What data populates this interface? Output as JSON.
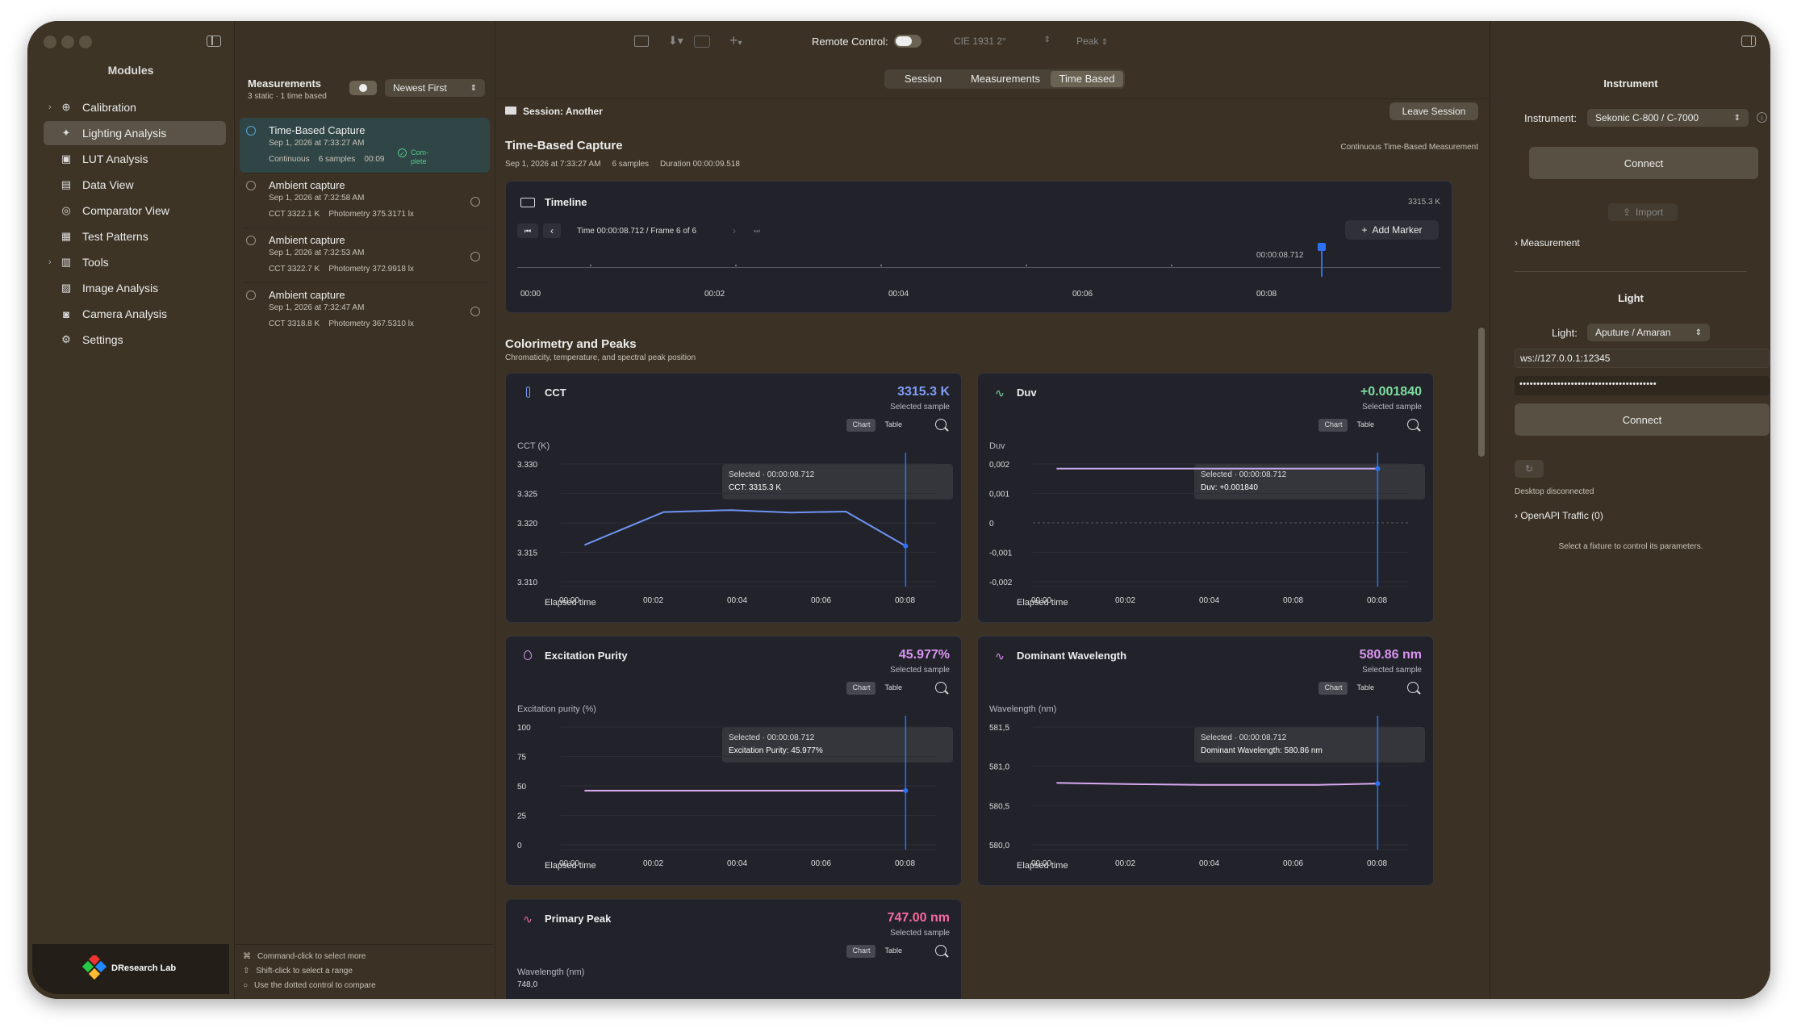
{
  "sidebar": {
    "title": "Modules",
    "items": [
      {
        "label": "Calibration",
        "icon": "crosshair-icon",
        "chevron": true
      },
      {
        "label": "Lighting Analysis",
        "icon": "sparkle-icon",
        "selected": true
      },
      {
        "label": "LUT Analysis",
        "icon": "cube-icon"
      },
      {
        "label": "Data View",
        "icon": "table-icon"
      },
      {
        "label": "Comparator View",
        "icon": "target-icon"
      },
      {
        "label": "Test Patterns",
        "icon": "grid-icon"
      },
      {
        "label": "Tools",
        "icon": "ruler-icon",
        "chevron": true
      },
      {
        "label": "Image Analysis",
        "icon": "photo-icon"
      },
      {
        "label": "Camera Analysis",
        "icon": "camera-icon"
      },
      {
        "label": "Settings",
        "icon": "gear-icon"
      }
    ],
    "brand": "DResearch Lab"
  },
  "toolbar": {
    "remote_label": "Remote Control:",
    "cie": "CIE 1931 2°",
    "peak": "Peak"
  },
  "measurements": {
    "title": "Measurements",
    "subtitle": "3 static · 1 time based",
    "sort": "Newest First",
    "items": [
      {
        "title": "Time-Based Capture",
        "date": "Sep 1, 2026 at 7:33:27 AM",
        "meta1": "Continuous",
        "meta2": "6 samples",
        "meta3": "00:09",
        "status": "Com-\nplete",
        "selected": true
      },
      {
        "title": "Ambient capture",
        "date": "Sep 1, 2026 at 7:32:58 AM",
        "meta1": "CCT 3322.1 K",
        "meta2": "Photometry 375.3171 lx"
      },
      {
        "title": "Ambient capture",
        "date": "Sep 1, 2026 at 7:32:53 AM",
        "meta1": "CCT 3322.7 K",
        "meta2": "Photometry 372.9918 lx"
      },
      {
        "title": "Ambient capture",
        "date": "Sep 1, 2026 at 7:32:47 AM",
        "meta1": "CCT 3318.8 K",
        "meta2": "Photometry 367.5310 lx"
      }
    ],
    "hints": [
      "Command-click to select more",
      "Shift-click to select a range",
      "Use the dotted control to compare"
    ]
  },
  "tabs": [
    "Session",
    "Measurements",
    "Time Based"
  ],
  "session": {
    "label": "Session: Another",
    "leave": "Leave Session"
  },
  "capture": {
    "title": "Time-Based Capture",
    "date": "Sep 1, 2026 at 7:33:27 AM",
    "samples": "6 samples",
    "duration": "Duration 00:00:09.518",
    "mode": "Continuous Time-Based Measurement"
  },
  "timeline": {
    "title": "Timeline",
    "value": "3315.3 K",
    "frame": "Time 00:00:08.712 / Frame 6 of 6",
    "add_marker": "Add Marker",
    "marker_time": "00:00:08.712",
    "ticks": [
      "00:00",
      "00:02",
      "00:04",
      "00:06",
      "00:08"
    ]
  },
  "colorimetry": {
    "title": "Colorimetry and Peaks",
    "subtitle": "Chromaticity, temperature, and spectral peak position"
  },
  "cards": [
    {
      "name": "CCT",
      "value": "3315.3 K",
      "color": "#7f9cf5",
      "sel": "Selected sample",
      "ylabel": "CCT (K)",
      "xlabel": "Elapsed time",
      "tip1": "Selected · 00:00:08.712",
      "tip2": "CCT: 3315.3 K",
      "yticks": [
        "3.330",
        "3.325",
        "3.320",
        "3.315",
        "3.310"
      ],
      "xticks": [
        "00:00",
        "00:02",
        "00:04",
        "00:06",
        "00:08"
      ]
    },
    {
      "name": "Duv",
      "value": "+0.001840",
      "color": "#7ddca0",
      "sel": "Selected sample",
      "ylabel": "Duv",
      "xlabel": "Elapsed time",
      "tip1": "Selected · 00:00:08.712",
      "tip2": "Duv: +0.001840",
      "yticks": [
        "0,002",
        "0,001",
        "0",
        "-0,001",
        "-0,002"
      ],
      "xticks": [
        "00:00",
        "00:02",
        "00:04",
        "00:08",
        "00:08"
      ]
    },
    {
      "name": "Excitation Purity",
      "value": "45.977%",
      "color": "#d995f0",
      "sel": "Selected sample",
      "ylabel": "Excitation purity (%)",
      "xlabel": "Elapsed time",
      "tip1": "Selected · 00:00:08.712",
      "tip2": "Excitation Purity: 45.977%",
      "yticks": [
        "100",
        "75",
        "50",
        "25",
        "0"
      ],
      "xticks": [
        "00:00",
        "00:02",
        "00:04",
        "00:06",
        "00:08"
      ]
    },
    {
      "name": "Dominant Wavelength",
      "value": "580.86 nm",
      "color": "#d995f0",
      "sel": "Selected sample",
      "ylabel": "Wavelength (nm)",
      "xlabel": "Elapsed time",
      "tip1": "Selected · 00:00:08.712",
      "tip2": "Dominant Wavelength: 580.86 nm",
      "yticks": [
        "581,5",
        "581,0",
        "580,5",
        "580,0"
      ],
      "xticks": [
        "00:00",
        "00:02",
        "00:04",
        "00:06",
        "00:08"
      ]
    },
    {
      "name": "Primary Peak",
      "value": "747.00 nm",
      "color": "#f56aa0",
      "sel": "Selected sample",
      "ylabel": "Wavelength (nm)",
      "ytop": "748,0"
    }
  ],
  "chart_labels": {
    "chart": "Chart",
    "table": "Table"
  },
  "instrument": {
    "title": "Instrument",
    "label": "Instrument:",
    "value": "Sekonic C-800 / C-7000",
    "connect": "Connect",
    "import": "Import",
    "measurement": "Measurement"
  },
  "light": {
    "title": "Light",
    "label": "Light:",
    "value": "Aputure / Amaran",
    "ws": "ws://127.0.0.1:12345",
    "password": "••••••••••••••••••••••••••••••••••••••••",
    "connect": "Connect",
    "status": "Desktop disconnected",
    "traffic": "OpenAPI Traffic (0)",
    "hint": "Select a fixture to control its parameters."
  },
  "chart_data": [
    {
      "type": "line",
      "title": "CCT",
      "ylabel": "CCT (K)",
      "xlabel": "Elapsed time",
      "ylim": [
        3.308,
        3.332
      ],
      "x": [
        0.6,
        2.6,
        4.3,
        5.8,
        7.2,
        8.712
      ],
      "values": [
        3.3155,
        3.3222,
        3.3226,
        3.3221,
        3.3223,
        3.3153
      ]
    },
    {
      "type": "line",
      "title": "Duv",
      "ylabel": "Duv",
      "xlabel": "Elapsed time",
      "ylim": [
        -0.002,
        0.002
      ],
      "x": [
        0.6,
        2.6,
        4.3,
        5.8,
        7.2,
        8.712
      ],
      "values": [
        0.00184,
        0.00184,
        0.00184,
        0.00184,
        0.00184,
        0.00184
      ]
    },
    {
      "type": "line",
      "title": "Excitation Purity",
      "ylabel": "Excitation purity (%)",
      "xlabel": "Elapsed time",
      "ylim": [
        0,
        100
      ],
      "x": [
        0.6,
        2.6,
        4.3,
        5.8,
        7.2,
        8.712
      ],
      "values": [
        45.98,
        45.98,
        45.98,
        45.98,
        45.98,
        45.977
      ]
    },
    {
      "type": "line",
      "title": "Dominant Wavelength",
      "ylabel": "Wavelength (nm)",
      "xlabel": "Elapsed time",
      "ylim": [
        579.95,
        581.7
      ],
      "x": [
        0.6,
        2.6,
        4.3,
        5.8,
        7.2,
        8.712
      ],
      "values": [
        580.87,
        580.85,
        580.84,
        580.84,
        580.84,
        580.86
      ]
    }
  ]
}
